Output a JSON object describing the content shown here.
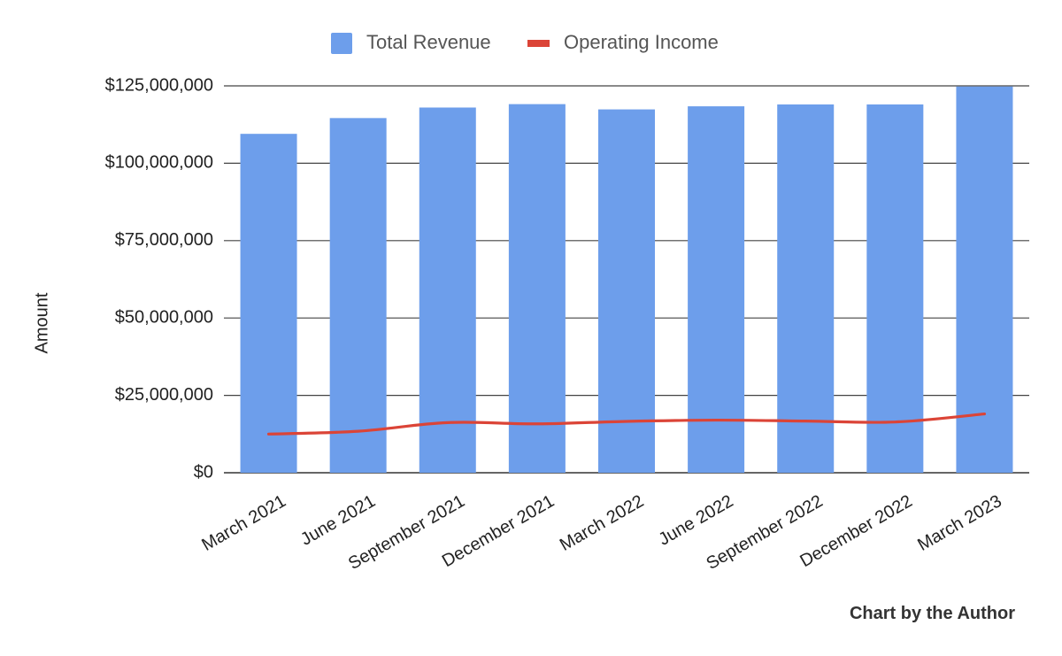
{
  "chart_data": {
    "type": "bar",
    "categories": [
      "March 2021",
      "June 2021",
      "September 2021",
      "December 2021",
      "March 2022",
      "June 2022",
      "September 2022",
      "December 2022",
      "March 2023"
    ],
    "series": [
      {
        "name": "Total Revenue",
        "type": "bar",
        "color": "#6d9eeb",
        "values": [
          109500000,
          114600000,
          118000000,
          119100000,
          117400000,
          118400000,
          119000000,
          119000000,
          124800000
        ]
      },
      {
        "name": "Operating Income",
        "type": "line",
        "color": "#db4437",
        "values": [
          12500000,
          13400000,
          16200000,
          15800000,
          16600000,
          17000000,
          16700000,
          16400000,
          19000000
        ]
      }
    ],
    "ylabel": "Amount",
    "xlabel": "",
    "ylim": [
      0,
      125000000
    ],
    "yticks": [
      0,
      25000000,
      50000000,
      75000000,
      100000000,
      125000000
    ],
    "ytick_labels": [
      "$0",
      "$25,000,000",
      "$50,000,000",
      "$75,000,000",
      "$100,000,000",
      "$125,000,000"
    ],
    "grid": true,
    "legend_position": "top-center"
  },
  "credit": "Chart by the Author"
}
